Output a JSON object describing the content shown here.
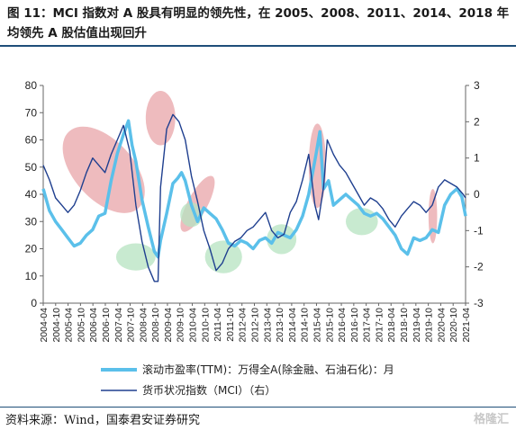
{
  "header": {
    "title": "图 11：MCI 指数对 A 股具有明显的领先性，在 2005、2008、2011、2014、2018 年均领先 A 股估值出现回升"
  },
  "footer": {
    "source": "资料来源：Wind，国泰君安证券研究",
    "watermark": "格隆汇"
  },
  "colors": {
    "pe_line": "#5bc0ea",
    "mci_line": "#1f3f8f",
    "pink_highlight": "#e8a4a8",
    "green_highlight": "#b6e3c0"
  },
  "chart_data": {
    "type": "line",
    "x_tick_labels": [
      "2004-04",
      "2004-10",
      "2005-04",
      "2005-10",
      "2006-04",
      "2006-10",
      "2007-04",
      "2007-10",
      "2008-04",
      "2008-10",
      "2009-04",
      "2009-10",
      "2010-04",
      "2010-10",
      "2011-04",
      "2011-10",
      "2012-04",
      "2012-10",
      "2013-04",
      "2013-10",
      "2014-04",
      "2014-10",
      "2015-04",
      "2015-10",
      "2016-04",
      "2016-10",
      "2017-04",
      "2017-10",
      "2018-04",
      "2018-10",
      "2019-04",
      "2019-10",
      "2020-04",
      "2020-10",
      "2021-04"
    ],
    "y_left": {
      "lim": [
        0,
        80
      ],
      "ticks": [
        0,
        10,
        20,
        30,
        40,
        50,
        60,
        70,
        80
      ]
    },
    "y_right": {
      "lim": [
        -3,
        3
      ],
      "ticks": [
        -3,
        -2,
        -1,
        0,
        1,
        2,
        3
      ]
    },
    "series": [
      {
        "name": "滚动市盈率(TTM)：万得全A(除金融、石油石化)：月",
        "axis": "left",
        "points": [
          [
            2004.25,
            42
          ],
          [
            2004.5,
            34
          ],
          [
            2004.75,
            30
          ],
          [
            2005.0,
            27
          ],
          [
            2005.25,
            24
          ],
          [
            2005.5,
            21
          ],
          [
            2005.75,
            22
          ],
          [
            2006.0,
            25
          ],
          [
            2006.25,
            27
          ],
          [
            2006.5,
            32
          ],
          [
            2006.75,
            33
          ],
          [
            2007.0,
            45
          ],
          [
            2007.25,
            55
          ],
          [
            2007.5,
            62
          ],
          [
            2007.7,
            67
          ],
          [
            2007.85,
            58
          ],
          [
            2008.0,
            52
          ],
          [
            2008.25,
            38
          ],
          [
            2008.5,
            28
          ],
          [
            2008.75,
            19
          ],
          [
            2008.9,
            17
          ],
          [
            2009.0,
            23
          ],
          [
            2009.25,
            33
          ],
          [
            2009.5,
            44
          ],
          [
            2009.7,
            46
          ],
          [
            2009.85,
            48
          ],
          [
            2010.0,
            45
          ],
          [
            2010.25,
            36
          ],
          [
            2010.5,
            30
          ],
          [
            2010.75,
            35
          ],
          [
            2011.0,
            33
          ],
          [
            2011.25,
            31
          ],
          [
            2011.5,
            27
          ],
          [
            2011.75,
            22
          ],
          [
            2012.0,
            21
          ],
          [
            2012.25,
            23
          ],
          [
            2012.5,
            22
          ],
          [
            2012.75,
            20
          ],
          [
            2013.0,
            23
          ],
          [
            2013.25,
            24
          ],
          [
            2013.5,
            22
          ],
          [
            2013.75,
            26
          ],
          [
            2014.0,
            25
          ],
          [
            2014.25,
            24
          ],
          [
            2014.5,
            27
          ],
          [
            2014.75,
            32
          ],
          [
            2015.0,
            40
          ],
          [
            2015.3,
            55
          ],
          [
            2015.45,
            63
          ],
          [
            2015.6,
            42
          ],
          [
            2015.8,
            45
          ],
          [
            2016.0,
            36
          ],
          [
            2016.25,
            38
          ],
          [
            2016.5,
            40
          ],
          [
            2016.75,
            38
          ],
          [
            2017.0,
            36
          ],
          [
            2017.25,
            33
          ],
          [
            2017.5,
            32
          ],
          [
            2017.75,
            33
          ],
          [
            2018.0,
            31
          ],
          [
            2018.25,
            28
          ],
          [
            2018.5,
            25
          ],
          [
            2018.75,
            20
          ],
          [
            2019.0,
            18
          ],
          [
            2019.25,
            24
          ],
          [
            2019.5,
            23
          ],
          [
            2019.75,
            24
          ],
          [
            2020.0,
            27
          ],
          [
            2020.25,
            26
          ],
          [
            2020.5,
            36
          ],
          [
            2020.75,
            40
          ],
          [
            2021.0,
            42
          ],
          [
            2021.2,
            39
          ],
          [
            2021.35,
            32
          ]
        ]
      },
      {
        "name": "货币状况指数（MCI）（右）",
        "axis": "right",
        "points": [
          [
            2004.25,
            0.8
          ],
          [
            2004.5,
            0.4
          ],
          [
            2004.75,
            -0.1
          ],
          [
            2005.0,
            -0.3
          ],
          [
            2005.25,
            -0.5
          ],
          [
            2005.5,
            -0.3
          ],
          [
            2005.75,
            0.1
          ],
          [
            2006.0,
            0.6
          ],
          [
            2006.25,
            1.0
          ],
          [
            2006.5,
            0.8
          ],
          [
            2006.75,
            0.6
          ],
          [
            2007.0,
            1.1
          ],
          [
            2007.25,
            1.5
          ],
          [
            2007.5,
            1.9
          ],
          [
            2007.75,
            1.2
          ],
          [
            2008.0,
            -0.3
          ],
          [
            2008.25,
            -1.3
          ],
          [
            2008.5,
            -2.0
          ],
          [
            2008.75,
            -2.4
          ],
          [
            2008.9,
            -2.4
          ],
          [
            2009.0,
            0.2
          ],
          [
            2009.25,
            1.8
          ],
          [
            2009.5,
            2.2
          ],
          [
            2009.75,
            2.0
          ],
          [
            2010.0,
            1.5
          ],
          [
            2010.25,
            0.5
          ],
          [
            2010.5,
            -0.2
          ],
          [
            2010.75,
            -1.0
          ],
          [
            2011.0,
            -1.5
          ],
          [
            2011.25,
            -2.1
          ],
          [
            2011.5,
            -1.9
          ],
          [
            2011.75,
            -1.5
          ],
          [
            2012.0,
            -1.3
          ],
          [
            2012.25,
            -1.2
          ],
          [
            2012.5,
            -1.0
          ],
          [
            2012.75,
            -0.9
          ],
          [
            2013.0,
            -0.7
          ],
          [
            2013.25,
            -0.5
          ],
          [
            2013.5,
            -1.0
          ],
          [
            2013.75,
            -1.2
          ],
          [
            2014.0,
            -1.1
          ],
          [
            2014.25,
            -0.5
          ],
          [
            2014.5,
            -0.2
          ],
          [
            2014.75,
            0.4
          ],
          [
            2015.0,
            1.1
          ],
          [
            2015.25,
            -0.3
          ],
          [
            2015.4,
            -0.7
          ],
          [
            2015.6,
            0.2
          ],
          [
            2015.75,
            1.5
          ],
          [
            2016.0,
            1.1
          ],
          [
            2016.25,
            0.8
          ],
          [
            2016.5,
            0.6
          ],
          [
            2016.75,
            0.3
          ],
          [
            2017.0,
            0.0
          ],
          [
            2017.25,
            -0.3
          ],
          [
            2017.5,
            -0.1
          ],
          [
            2017.75,
            -0.2
          ],
          [
            2018.0,
            -0.4
          ],
          [
            2018.25,
            -0.7
          ],
          [
            2018.5,
            -0.9
          ],
          [
            2018.75,
            -0.6
          ],
          [
            2019.0,
            -0.4
          ],
          [
            2019.25,
            -0.2
          ],
          [
            2019.5,
            -0.3
          ],
          [
            2019.75,
            -0.5
          ],
          [
            2020.0,
            -0.3
          ],
          [
            2020.25,
            0.2
          ],
          [
            2020.5,
            0.4
          ],
          [
            2020.75,
            0.3
          ],
          [
            2021.0,
            0.2
          ],
          [
            2021.25,
            0.0
          ],
          [
            2021.35,
            -0.1
          ]
        ]
      }
    ],
    "highlights": [
      {
        "color": "pink",
        "x": [
          2005.5,
          2007.9
        ],
        "y_left": [
          30,
          68
        ]
      },
      {
        "color": "pink",
        "x": [
          2008.4,
          2009.6
        ],
        "y_left": [
          58,
          78
        ]
      },
      {
        "color": "pink",
        "x": [
          2010.1,
          2010.9
        ],
        "y_left": [
          25,
          48
        ]
      },
      {
        "color": "pink",
        "x": [
          2015.0,
          2015.7
        ],
        "y_left": [
          35,
          66
        ]
      },
      {
        "color": "pink",
        "x": [
          2019.85,
          2020.2
        ],
        "y_left": [
          22,
          42
        ]
      },
      {
        "color": "green",
        "x": [
          2007.2,
          2008.8
        ],
        "y_left": [
          12,
          22
        ]
      },
      {
        "color": "green",
        "x": [
          2009.8,
          2010.7
        ],
        "y_left": [
          28,
          37
        ]
      },
      {
        "color": "green",
        "x": [
          2010.8,
          2012.3
        ],
        "y_left": [
          11,
          23
        ]
      },
      {
        "color": "green",
        "x": [
          2013.3,
          2014.5
        ],
        "y_left": [
          18,
          29
        ]
      },
      {
        "color": "green",
        "x": [
          2016.5,
          2017.8
        ],
        "y_left": [
          25,
          35
        ]
      }
    ]
  }
}
